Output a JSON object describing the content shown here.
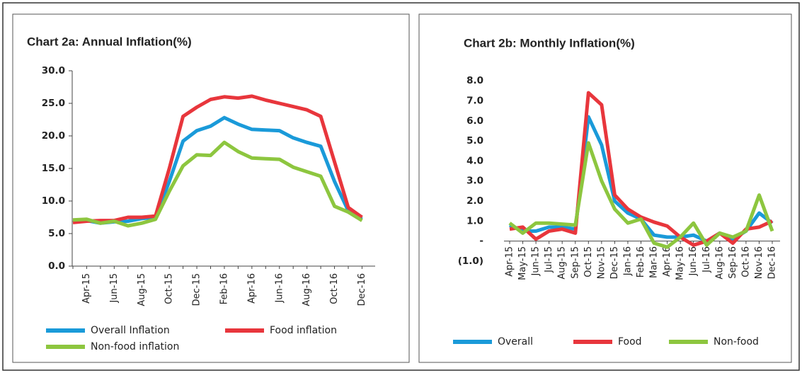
{
  "chart_data": [
    {
      "type": "line",
      "title": "Chart 2a: Annual Inflation(%)",
      "categories": [
        null,
        "Apr-15",
        null,
        "Jun-15",
        null,
        "Aug-15",
        null,
        "Oct-15",
        null,
        "Dec-15",
        null,
        "Feb-16",
        null,
        "Apr-16",
        null,
        "Jun-16",
        null,
        "Aug-16",
        null,
        "Oct-16",
        null,
        "Dec-16"
      ],
      "series": [
        {
          "name": "Overall Inflation",
          "color": "#1a9ad9",
          "values": [
            7.0,
            7.0,
            6.6,
            6.8,
            6.9,
            7.3,
            7.5,
            13.0,
            19.2,
            20.8,
            21.5,
            22.8,
            21.8,
            21.0,
            20.9,
            20.8,
            19.7,
            19.0,
            18.4,
            13.0,
            8.5,
            7.2
          ]
        },
        {
          "name": "Food inflation",
          "color": "#e8363c",
          "values": [
            6.7,
            6.9,
            7.0,
            7.0,
            7.5,
            7.5,
            7.7,
            15.0,
            23.0,
            24.4,
            25.6,
            26.0,
            25.8,
            26.1,
            25.5,
            25.0,
            24.5,
            24.0,
            23.0,
            16.0,
            9.0,
            7.5
          ]
        },
        {
          "name": "Non-food inflation",
          "color": "#8dc63f",
          "values": [
            7.1,
            7.2,
            6.6,
            6.9,
            6.2,
            6.6,
            7.2,
            11.5,
            15.4,
            17.1,
            17.0,
            19.0,
            17.6,
            16.6,
            16.5,
            16.4,
            15.2,
            14.5,
            13.8,
            9.2,
            8.3,
            7.0
          ]
        }
      ],
      "ylim": [
        0,
        30
      ],
      "yticks": [
        {
          "value": 0,
          "label": "0.0"
        },
        {
          "value": 5,
          "label": "5.0"
        },
        {
          "value": 10,
          "label": "10.0"
        },
        {
          "value": 15,
          "label": "15.0"
        },
        {
          "value": 20,
          "label": "20.0"
        },
        {
          "value": 25,
          "label": "25.0"
        },
        {
          "value": 30,
          "label": "30.0"
        }
      ],
      "grid": false
    },
    {
      "type": "line",
      "title": "Chart 2b: Monthly Inflation(%)",
      "categories": [
        "Apr-15",
        "May-15",
        "Jun-15",
        "Jul-15",
        "Aug-15",
        "Sep-15",
        "Oct-15",
        "Nov-15",
        "Dec-15",
        "Jan-16",
        "Feb-16",
        "Mar-16",
        "Apr-16",
        "May-16",
        "Jun-16",
        "Jul-16",
        "Aug-16",
        "Sep-16",
        "Oct-16",
        "Nov-16",
        "Dec-16"
      ],
      "series": [
        {
          "name": "Overall",
          "color": "#1a9ad9",
          "values": [
            0.8,
            0.5,
            0.5,
            0.7,
            0.7,
            0.6,
            6.2,
            4.8,
            2.0,
            1.4,
            1.1,
            0.3,
            0.2,
            0.2,
            0.3,
            0.0,
            0.4,
            0.1,
            0.5,
            1.4,
            0.9
          ]
        },
        {
          "name": "Food",
          "color": "#e8363c",
          "values": [
            0.6,
            0.7,
            0.1,
            0.5,
            0.6,
            0.4,
            7.4,
            6.8,
            2.3,
            1.6,
            1.2,
            0.95,
            0.75,
            0.2,
            -0.2,
            0.0,
            0.4,
            -0.1,
            0.6,
            0.7,
            1.0
          ]
        },
        {
          "name": "Non-food",
          "color": "#8dc63f",
          "values": [
            0.9,
            0.4,
            0.9,
            0.9,
            0.85,
            0.8,
            4.9,
            3.0,
            1.6,
            0.9,
            1.1,
            -0.1,
            -0.3,
            0.2,
            0.9,
            -0.2,
            0.4,
            0.2,
            0.5,
            2.3,
            0.5
          ]
        }
      ],
      "ylim": [
        -1,
        8.5
      ],
      "yticks": [
        {
          "value": -1,
          "label": "(1.0)"
        },
        {
          "value": 0,
          "label": "-"
        },
        {
          "value": 1,
          "label": "1.0"
        },
        {
          "value": 2,
          "label": "2.0"
        },
        {
          "value": 3,
          "label": "3.0"
        },
        {
          "value": 4,
          "label": "4.0"
        },
        {
          "value": 5,
          "label": "5.0"
        },
        {
          "value": 6,
          "label": "6.0"
        },
        {
          "value": 7,
          "label": "7.0"
        },
        {
          "value": 8,
          "label": "8.0"
        }
      ],
      "grid": false
    }
  ]
}
